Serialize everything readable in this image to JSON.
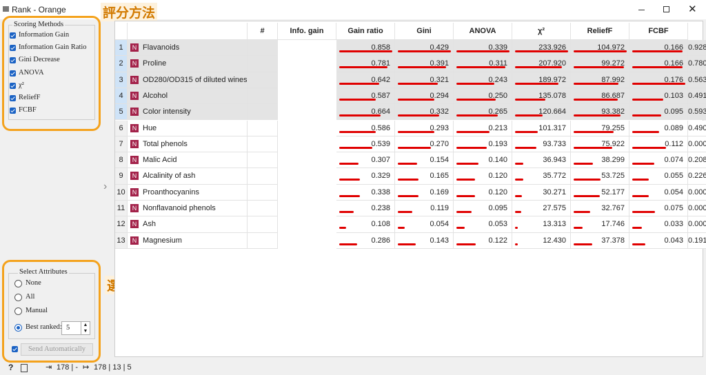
{
  "window": {
    "title": "Rank - Orange"
  },
  "annotations": {
    "scoring": "評分方法",
    "select": "選擇屬性"
  },
  "scoring_methods": {
    "title": "Scoring Methods",
    "items": [
      "Information Gain",
      "Information Gain Ratio",
      "Gini Decrease",
      "ANOVA",
      "χ²",
      "ReliefF",
      "FCBF"
    ]
  },
  "select_attributes": {
    "title": "Select Attributes",
    "options": [
      "None",
      "All",
      "Manual",
      "Best ranked:"
    ],
    "best_ranked": 5
  },
  "send_automatically": "Send Automatically",
  "status": {
    "input": "178 | -",
    "output": "178 | 13 | 5"
  },
  "table": {
    "columns": [
      "#",
      "Info. gain",
      "Gain ratio",
      "Gini",
      "ANOVA",
      "χ²",
      "ReliefF",
      "FCBF"
    ],
    "rows": [
      {
        "index": 1,
        "type": "N",
        "name": "Flavanoids",
        "values": [
          0.858,
          0.429,
          0.339,
          233.926,
          104.972,
          0.166,
          0.928
        ],
        "value_labels": [
          "0.858",
          "0.429",
          "0.339",
          "233.926",
          "104.972",
          "0.166",
          "0.928"
        ]
      },
      {
        "index": 2,
        "type": "N",
        "name": "Proline",
        "values": [
          0.781,
          0.391,
          0.311,
          207.92,
          99.272,
          0.166,
          0.78
        ],
        "value_labels": [
          "0.781",
          "0.391",
          "0.311",
          "207.920",
          "99.272",
          "0.166",
          "0.780"
        ]
      },
      {
        "index": 3,
        "type": "N",
        "name": "OD280/OD315 of diluted wines",
        "values": [
          0.642,
          0.321,
          0.243,
          189.972,
          87.992,
          0.176,
          0.563
        ],
        "value_labels": [
          "0.642",
          "0.321",
          "0.243",
          "189.972",
          "87.992",
          "0.176",
          "0.563"
        ]
      },
      {
        "index": 4,
        "type": "N",
        "name": "Alcohol",
        "values": [
          0.587,
          0.294,
          0.25,
          135.078,
          86.687,
          0.103,
          0.491
        ],
        "value_labels": [
          "0.587",
          "0.294",
          "0.250",
          "135.078",
          "86.687",
          "0.103",
          "0.491"
        ]
      },
      {
        "index": 5,
        "type": "N",
        "name": "Color intensity",
        "values": [
          0.664,
          0.332,
          0.265,
          120.664,
          93.382,
          0.095,
          0.593
        ],
        "value_labels": [
          "0.664",
          "0.332",
          "0.265",
          "120.664",
          "93.382",
          "0.095",
          "0.593"
        ]
      },
      {
        "index": 6,
        "type": "N",
        "name": "Hue",
        "values": [
          0.586,
          0.293,
          0.213,
          101.317,
          79.255,
          0.089,
          0.49
        ],
        "value_labels": [
          "0.586",
          "0.293",
          "0.213",
          "101.317",
          "79.255",
          "0.089",
          "0.490"
        ]
      },
      {
        "index": 7,
        "type": "N",
        "name": "Total phenols",
        "values": [
          0.539,
          0.27,
          0.193,
          93.733,
          75.922,
          0.112,
          0
        ],
        "value_labels": [
          "0.539",
          "0.270",
          "0.193",
          "93.733",
          "75.922",
          "0.112",
          "0.000"
        ]
      },
      {
        "index": 8,
        "type": "N",
        "name": "Malic Acid",
        "values": [
          0.307,
          0.154,
          0.14,
          36.943,
          38.299,
          0.074,
          0.208
        ],
        "value_labels": [
          "0.307",
          "0.154",
          "0.140",
          "36.943",
          "38.299",
          "0.074",
          "0.208"
        ]
      },
      {
        "index": 9,
        "type": "N",
        "name": "Alcalinity of ash",
        "values": [
          0.329,
          0.165,
          0.12,
          35.772,
          53.725,
          0.055,
          0.226
        ],
        "value_labels": [
          "0.329",
          "0.165",
          "0.120",
          "35.772",
          "53.725",
          "0.055",
          "0.226"
        ]
      },
      {
        "index": 10,
        "type": "N",
        "name": "Proanthocyanins",
        "values": [
          0.338,
          0.169,
          0.12,
          30.271,
          52.177,
          0.054,
          0
        ],
        "value_labels": [
          "0.338",
          "0.169",
          "0.120",
          "30.271",
          "52.177",
          "0.054",
          "0.000"
        ]
      },
      {
        "index": 11,
        "type": "N",
        "name": "Nonflavanoid phenols",
        "values": [
          0.238,
          0.119,
          0.095,
          27.575,
          32.767,
          0.075,
          0
        ],
        "value_labels": [
          "0.238",
          "0.119",
          "0.095",
          "27.575",
          "32.767",
          "0.075",
          "0.000"
        ]
      },
      {
        "index": 12,
        "type": "N",
        "name": "Ash",
        "values": [
          0.108,
          0.054,
          0.053,
          13.313,
          17.746,
          0.033,
          0
        ],
        "value_labels": [
          "0.108",
          "0.054",
          "0.053",
          "13.313",
          "17.746",
          "0.033",
          "0.000"
        ]
      },
      {
        "index": 13,
        "type": "N",
        "name": "Magnesium",
        "values": [
          0.286,
          0.143,
          0.122,
          12.43,
          37.378,
          0.043,
          0.191
        ],
        "value_labels": [
          "0.286",
          "0.143",
          "0.122",
          "12.430",
          "37.378",
          "0.043",
          "0.191"
        ]
      }
    ]
  }
}
